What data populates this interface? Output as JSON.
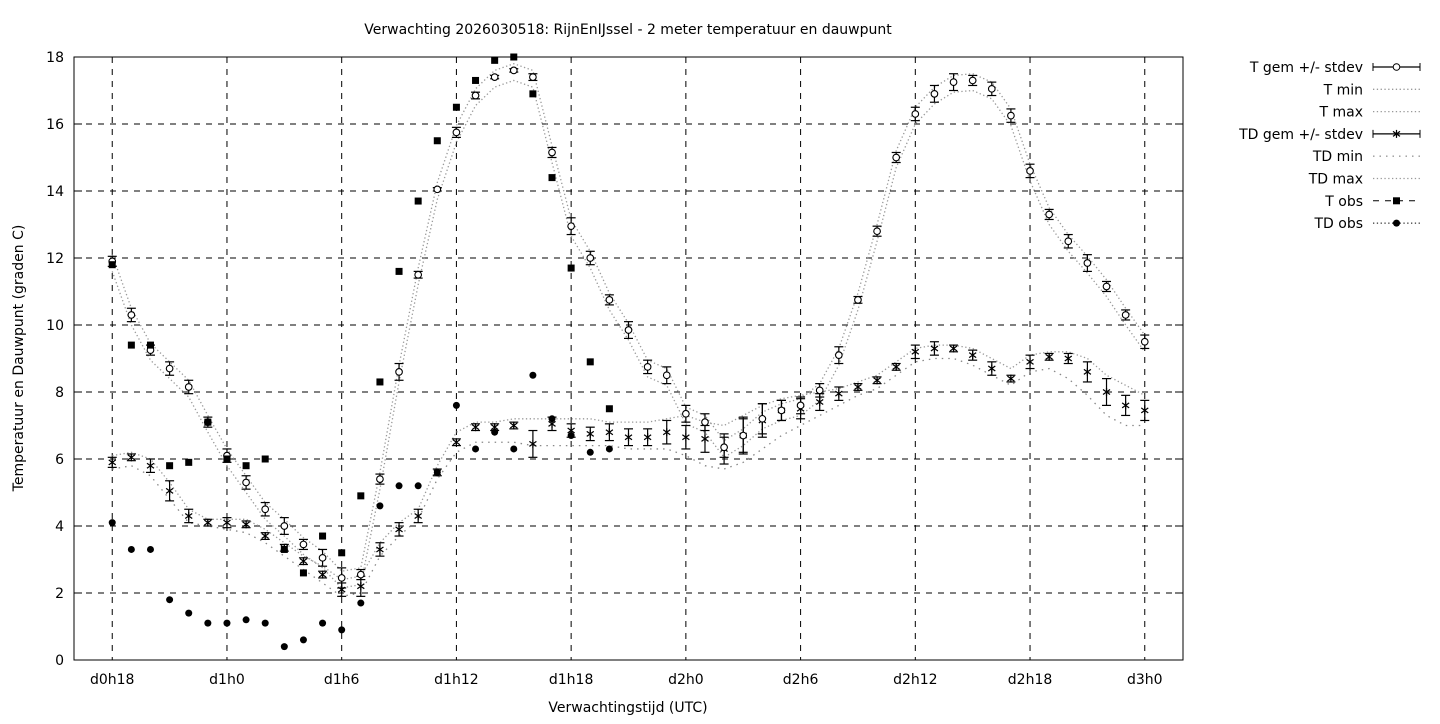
{
  "chart_data": {
    "type": "line",
    "title": "Verwachting 2026030518: RijnEnIJssel - 2 meter temperatuur en dauwpunt",
    "xlabel": "Verwachtingstijd (UTC)",
    "ylabel": "Temperatuur en Dauwpunt (graden C)",
    "x_unit": "hours since d0h0",
    "xlim": [
      16,
      74
    ],
    "ylim": [
      0,
      18
    ],
    "grid": true,
    "legend_position": "outside-top-right",
    "x_ticks": [
      {
        "value": 18,
        "label": "d0h18"
      },
      {
        "value": 24,
        "label": "d1h0"
      },
      {
        "value": 30,
        "label": "d1h6"
      },
      {
        "value": 36,
        "label": "d1h12"
      },
      {
        "value": 42,
        "label": "d1h18"
      },
      {
        "value": 48,
        "label": "d2h0"
      },
      {
        "value": 54,
        "label": "d2h6"
      },
      {
        "value": 60,
        "label": "d2h12"
      },
      {
        "value": 66,
        "label": "d2h18"
      },
      {
        "value": 72,
        "label": "d3h0"
      }
    ],
    "y_ticks": [
      "0",
      "2",
      "4",
      "6",
      "8",
      "10",
      "12",
      "14",
      "16",
      "18"
    ],
    "x_start": 18,
    "x_step": 1,
    "legend": [
      "T gem +/- stdev",
      "T min",
      "T max",
      "TD gem +/- stdev",
      "TD min",
      "TD max",
      "T obs",
      "TD obs"
    ],
    "series": {
      "t_gem": [
        11.9,
        10.3,
        9.25,
        8.7,
        8.15,
        7.1,
        6.1,
        5.3,
        4.5,
        4.0,
        3.45,
        3.05,
        2.45,
        2.55,
        5.4,
        8.6,
        11.5,
        14.05,
        15.75,
        16.85,
        17.4,
        17.6,
        17.4,
        15.15,
        12.95,
        12.0,
        10.75,
        9.85,
        8.75,
        8.5,
        7.35,
        7.1,
        6.35,
        6.7,
        7.2,
        7.45,
        7.6,
        8.05,
        9.1,
        10.75,
        12.8,
        15.0,
        16.3,
        16.9,
        17.25,
        17.3,
        17.05,
        16.25,
        14.6,
        13.3,
        12.5,
        11.85,
        11.15,
        10.3,
        9.5
      ],
      "t_stdev": [
        0.15,
        0.2,
        0.15,
        0.2,
        0.2,
        0.15,
        0.2,
        0.2,
        0.2,
        0.25,
        0.15,
        0.25,
        0.3,
        0.15,
        0.15,
        0.25,
        0.1,
        0.05,
        0.15,
        0.1,
        0.05,
        0.05,
        0.1,
        0.15,
        0.25,
        0.2,
        0.15,
        0.25,
        0.2,
        0.25,
        0.25,
        0.25,
        0.3,
        0.5,
        0.45,
        0.3,
        0.25,
        0.2,
        0.25,
        0.1,
        0.15,
        0.15,
        0.2,
        0.25,
        0.25,
        0.15,
        0.2,
        0.2,
        0.2,
        0.15,
        0.2,
        0.25,
        0.15,
        0.15,
        0.2
      ],
      "t_min": [
        11.6,
        10.0,
        8.95,
        8.4,
        7.85,
        6.8,
        5.8,
        5.0,
        4.2,
        3.7,
        3.15,
        2.75,
        2.15,
        2.25,
        5.1,
        8.3,
        11.2,
        13.75,
        15.45,
        16.55,
        17.1,
        17.3,
        17.1,
        14.85,
        12.65,
        11.7,
        10.45,
        9.55,
        8.45,
        8.2,
        7.05,
        6.8,
        6.05,
        6.4,
        6.9,
        7.15,
        7.3,
        7.75,
        8.8,
        10.45,
        12.5,
        14.7,
        16.0,
        16.6,
        16.95,
        17.0,
        16.75,
        15.95,
        14.3,
        13.0,
        12.2,
        11.55,
        10.85,
        10.0,
        9.2
      ],
      "t_max": [
        12.1,
        10.5,
        9.45,
        8.9,
        8.35,
        7.3,
        6.3,
        5.5,
        4.7,
        4.2,
        3.65,
        3.25,
        2.65,
        2.75,
        5.6,
        8.8,
        11.7,
        14.25,
        15.95,
        17.05,
        17.6,
        17.8,
        17.6,
        15.35,
        13.15,
        12.2,
        10.95,
        10.05,
        8.95,
        8.7,
        7.55,
        7.3,
        6.55,
        6.9,
        7.4,
        7.65,
        7.8,
        8.25,
        9.3,
        10.95,
        13.0,
        15.2,
        16.5,
        17.1,
        17.45,
        17.5,
        17.25,
        16.45,
        14.8,
        13.5,
        12.7,
        12.05,
        11.35,
        10.5,
        9.7
      ],
      "td_gem": [
        5.9,
        6.05,
        5.8,
        5.05,
        4.3,
        4.1,
        4.1,
        4.05,
        3.7,
        3.35,
        2.95,
        2.55,
        2.1,
        2.2,
        3.3,
        3.9,
        4.3,
        5.6,
        6.5,
        6.95,
        6.95,
        7.0,
        6.45,
        7.05,
        6.85,
        6.75,
        6.8,
        6.65,
        6.65,
        6.8,
        6.65,
        6.6,
        6.3,
        6.7,
        7.15,
        7.45,
        7.5,
        7.7,
        7.95,
        8.15,
        8.35,
        8.75,
        9.2,
        9.3,
        9.3,
        9.1,
        8.7,
        8.4,
        8.9,
        9.05,
        9.0,
        8.6,
        8.0,
        7.6,
        7.45
      ],
      "td_stdev": [
        0.15,
        0.1,
        0.2,
        0.3,
        0.2,
        0.1,
        0.15,
        0.1,
        0.1,
        0.1,
        0.1,
        0.1,
        0.2,
        0.3,
        0.2,
        0.2,
        0.2,
        0.1,
        0.1,
        0.1,
        0.1,
        0.1,
        0.4,
        0.2,
        0.2,
        0.2,
        0.25,
        0.25,
        0.25,
        0.35,
        0.35,
        0.4,
        0.45,
        0.55,
        0.5,
        0.3,
        0.3,
        0.25,
        0.2,
        0.1,
        0.1,
        0.1,
        0.2,
        0.2,
        0.1,
        0.15,
        0.2,
        0.1,
        0.2,
        0.1,
        0.15,
        0.3,
        0.4,
        0.3,
        0.3
      ],
      "td_min": [
        5.7,
        5.8,
        5.5,
        4.8,
        4.1,
        4.0,
        3.9,
        3.8,
        3.5,
        3.1,
        2.7,
        2.3,
        1.9,
        2.0,
        3.1,
        3.7,
        4.2,
        5.4,
        6.2,
        6.5,
        6.5,
        6.5,
        6.4,
        6.4,
        6.4,
        6.4,
        6.4,
        6.3,
        6.3,
        6.3,
        6.1,
        5.8,
        5.7,
        5.9,
        6.3,
        6.7,
        7.0,
        7.3,
        7.6,
        7.9,
        8.1,
        8.5,
        8.9,
        9.0,
        9.0,
        8.8,
        8.5,
        8.2,
        8.6,
        8.7,
        8.4,
        7.9,
        7.3,
        7.0,
        7.0
      ],
      "td_max": [
        6.1,
        6.2,
        6.0,
        5.3,
        4.5,
        4.2,
        4.2,
        4.2,
        3.9,
        3.5,
        3.1,
        2.8,
        2.4,
        2.5,
        3.5,
        4.1,
        4.5,
        5.8,
        6.8,
        7.1,
        7.1,
        7.2,
        7.2,
        7.2,
        7.2,
        7.2,
        7.1,
        7.1,
        7.1,
        7.2,
        7.3,
        7.1,
        7.0,
        7.3,
        7.6,
        7.8,
        7.9,
        8.0,
        8.1,
        8.3,
        8.5,
        8.9,
        9.3,
        9.4,
        9.4,
        9.3,
        9.0,
        8.7,
        9.1,
        9.2,
        9.2,
        9.0,
        8.5,
        8.2,
        7.9
      ],
      "t_obs": [
        11.8,
        9.4,
        9.4,
        5.8,
        5.9,
        7.1,
        6.0,
        5.8,
        6.0,
        3.3,
        2.6,
        3.7,
        3.2,
        4.9,
        8.3,
        11.6,
        13.7,
        15.5,
        16.5,
        17.3,
        17.9,
        18.0,
        16.9,
        14.4,
        11.7,
        8.9,
        7.5
      ],
      "td_obs": [
        4.1,
        3.3,
        3.3,
        1.8,
        1.4,
        1.1,
        1.1,
        1.2,
        1.1,
        0.4,
        0.6,
        1.1,
        0.9,
        1.7,
        4.6,
        5.2,
        5.2,
        5.6,
        7.6,
        6.3,
        6.8,
        6.3,
        8.5,
        7.2,
        6.7,
        6.2,
        6.3
      ]
    }
  }
}
